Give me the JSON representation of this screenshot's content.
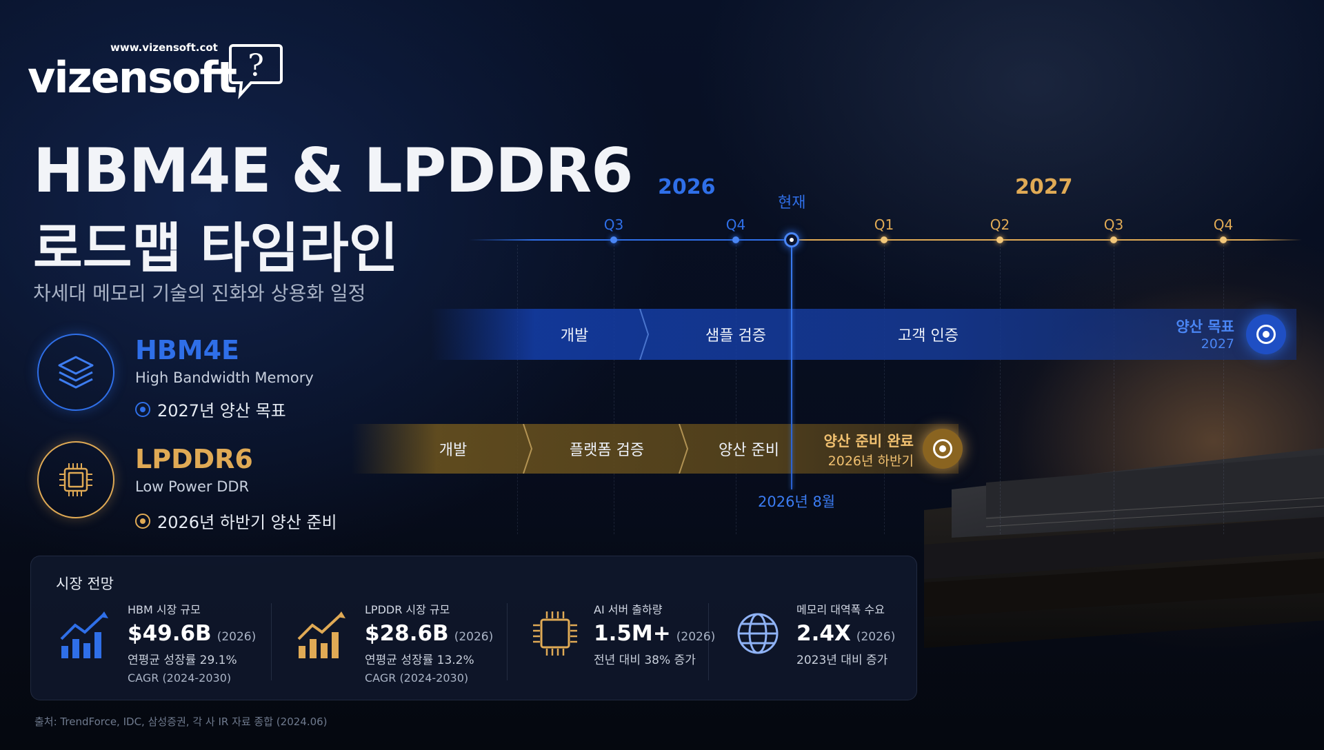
{
  "brand": {
    "url": "www.vizensoft.cot",
    "name": "vizensoft",
    "icon": "question-speech-bubble-icon"
  },
  "title": {
    "line1": "HBM4E & LPDDR6",
    "line2": "로드맵 타임라인",
    "subtitle": "차세대 메모리 기술의 진화와 상용화 일정"
  },
  "products": [
    {
      "name": "HBM4E",
      "desc": "High Bandwidth Memory",
      "target": "2027년 양산 목표",
      "icon": "stacked-layers-icon",
      "color": "#2f6fe8"
    },
    {
      "name": "LPDDR6",
      "desc": "Low Power DDR",
      "target": "2026년 하반기 양산 준비",
      "icon": "memory-chip-icon",
      "color": "#e0aa55"
    }
  ],
  "timeline": {
    "years": [
      "2026",
      "2027"
    ],
    "quarters_2026": [
      "Q3",
      "Q4"
    ],
    "quarters_2027": [
      "Q1",
      "Q2",
      "Q3",
      "Q4"
    ],
    "now_label": "현재",
    "now_date": "2026년 8월",
    "colors": {
      "blue": "#2f6fe8",
      "gold": "#e0aa55"
    }
  },
  "hbm4e_track": {
    "phases": [
      "개발",
      "샘플 검증",
      "고객 인증"
    ],
    "milestone": {
      "label": "양산 목표",
      "date": "2027"
    }
  },
  "lpddr6_track": {
    "phases": [
      "개발",
      "플랫폼 검증",
      "양산 준비"
    ],
    "milestone": {
      "label": "양산 준비 완료",
      "date": "2026년 하반기"
    }
  },
  "market": {
    "title": "시장 전망",
    "items": [
      {
        "icon": "bar-chart-up-icon",
        "label": "HBM 시장 규모",
        "value": "$49.6B",
        "year": "(2026)",
        "sub": "연평균 성장률 29.1%",
        "sub2": "CAGR (2024-2030)"
      },
      {
        "icon": "bar-chart-up-icon",
        "label": "LPDDR 시장 규모",
        "value": "$28.6B",
        "year": "(2026)",
        "sub": "연평균 성장률 13.2%",
        "sub2": "CAGR (2024-2030)"
      },
      {
        "icon": "cpu-chip-icon",
        "label": "AI 서버 출하량",
        "value": "1.5M+",
        "year": "(2026)",
        "sub": "전년 대비 38% 증가",
        "sub2": ""
      },
      {
        "icon": "globe-icon",
        "label": "메모리 대역폭 수요",
        "value": "2.4X",
        "year": "(2026)",
        "sub": "2023년 대비 증가",
        "sub2": ""
      }
    ]
  },
  "source": "출처: TrendForce, IDC, 삼성증권, 각 사 IR 자료 종합 (2024.06)"
}
